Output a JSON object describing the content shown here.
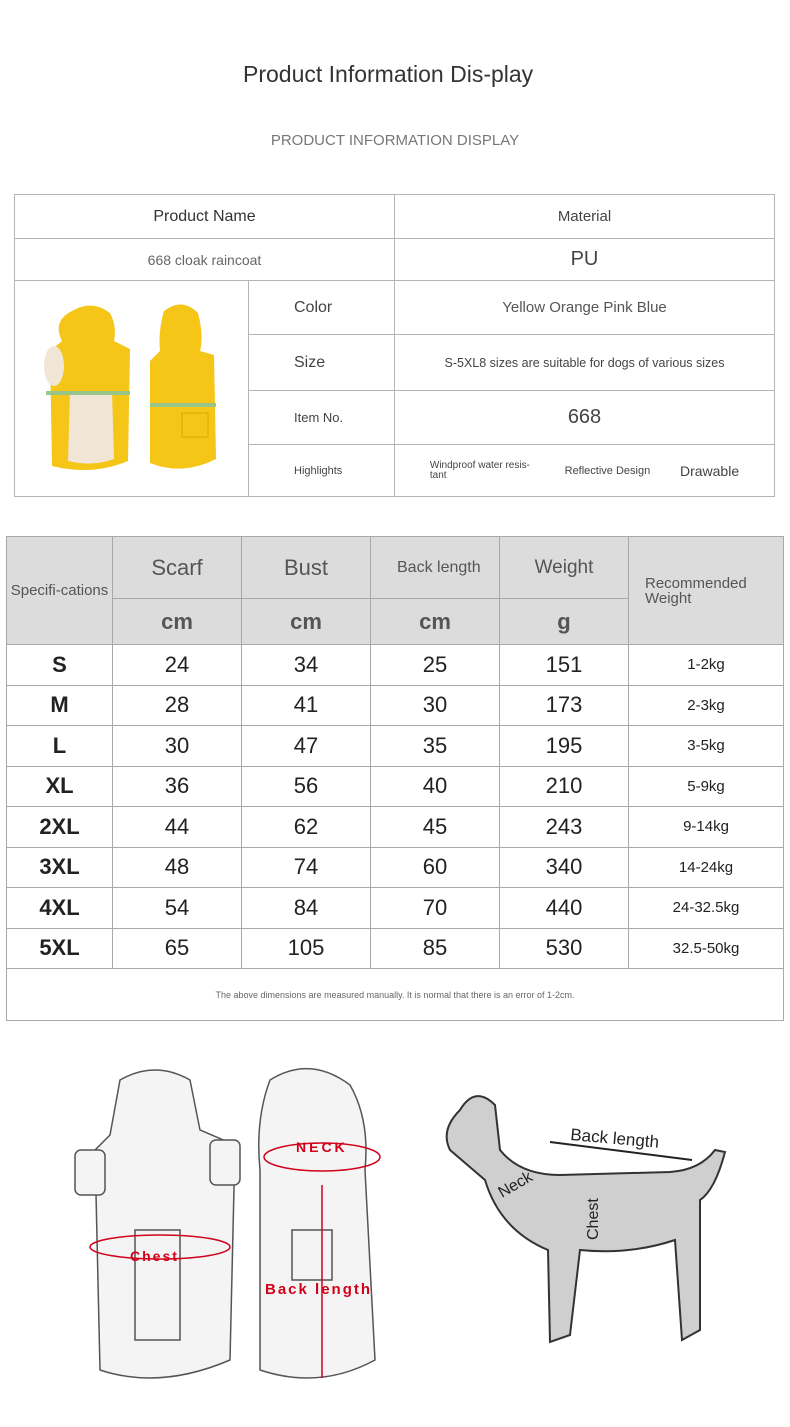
{
  "header": {
    "title": "Product Information Dis-play",
    "subtitle": "PRODUCT INFORMATION DISPLAY"
  },
  "info": {
    "product_name_label": "Product Name",
    "material_label": "Material",
    "product_name": "668 cloak raincoat",
    "material": "PU",
    "color_label": "Color",
    "color": "Yellow Orange Pink Blue",
    "size_label": "Size",
    "size": "S-5XL8 sizes are suitable for dogs of various sizes",
    "item_label": "Item No.",
    "item": "668",
    "highlights_label": "Highlights",
    "highlights": [
      "Windproof water resis-tant",
      "Reflective Design",
      "Drawable"
    ],
    "product_color": "#f5c518"
  },
  "specs": {
    "headers": [
      "Specifi-cations",
      "Scarf",
      "Bust",
      "Back length",
      "Weight",
      "Recommended Weight"
    ],
    "units": [
      "cm",
      "cm",
      "cm",
      "g"
    ],
    "rows": [
      [
        "S",
        "24",
        "34",
        "25",
        "151",
        "1-2kg"
      ],
      [
        "M",
        "28",
        "41",
        "30",
        "173",
        "2-3kg"
      ],
      [
        "L",
        "30",
        "47",
        "35",
        "195",
        "3-5kg"
      ],
      [
        "XL",
        "36",
        "56",
        "40",
        "210",
        "5-9kg"
      ],
      [
        "2XL",
        "44",
        "62",
        "45",
        "243",
        "9-14kg"
      ],
      [
        "3XL",
        "48",
        "74",
        "60",
        "340",
        "14-24kg"
      ],
      [
        "4XL",
        "54",
        "84",
        "70",
        "440",
        "24-32.5kg"
      ],
      [
        "5XL",
        "65",
        "105",
        "85",
        "530",
        "32.5-50kg"
      ]
    ],
    "note": "The above dimensions are measured manually. It is normal that there is an error of 1-2cm."
  },
  "diagram": {
    "coat_labels": {
      "chest": "Chest",
      "neck": "NECK",
      "back": "Back length"
    },
    "dog_labels": {
      "back": "Back length",
      "neck": "Neck",
      "chest": "Chest"
    },
    "accent": "#d0021b"
  }
}
